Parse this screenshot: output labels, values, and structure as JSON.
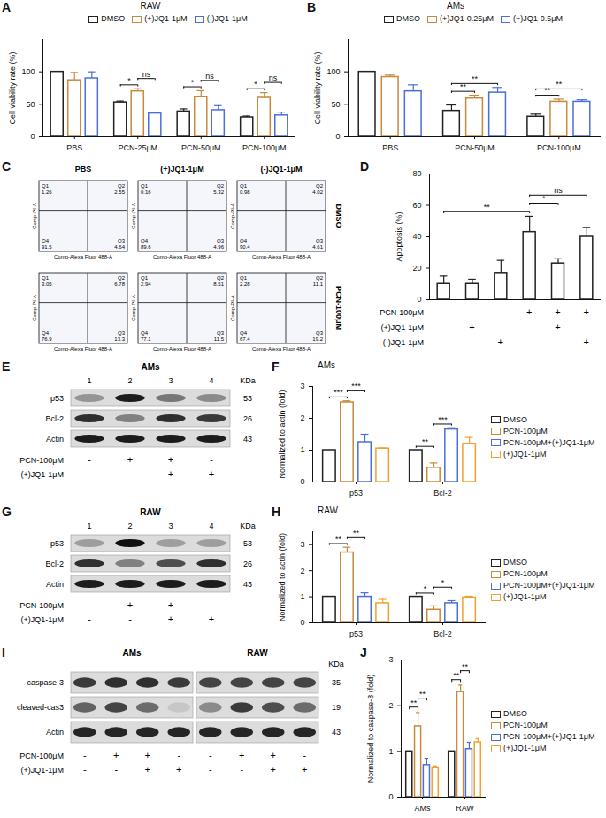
{
  "chart_data": [
    {
      "panel": "A",
      "type": "bar",
      "title": "RAW",
      "y_label": "Cell viability rate (%)",
      "categories": [
        "PBS",
        "PCN-25μM",
        "PCN-50μM",
        "PCN-100μM"
      ],
      "series": [
        {
          "name": "DMSO",
          "color": "#222222",
          "values": [
            100,
            53,
            39,
            30
          ],
          "errors": [
            0,
            2,
            4,
            2
          ]
        },
        {
          "name": "(+)JQ1-1μM",
          "color": "#c8893b",
          "values": [
            87,
            70,
            61,
            60
          ],
          "errors": [
            12,
            4,
            10,
            8
          ]
        },
        {
          "name": "(-)JQ1-1μM",
          "color": "#4a6fd6",
          "values": [
            90,
            36,
            41,
            33
          ],
          "errors": [
            10,
            2,
            7,
            5
          ]
        }
      ],
      "ylim": [
        0,
        150
      ],
      "yticks": [
        0,
        50,
        100
      ],
      "legend": "top",
      "annotations": [
        {
          "category": "PCN-25μM",
          "between": [
            "DMSO",
            "(+)JQ1-1μM"
          ],
          "text": "*"
        },
        {
          "category": "PCN-25μM",
          "between": [
            "(+)JQ1-1μM",
            "(-)JQ1-1μM"
          ],
          "text": "ns"
        },
        {
          "category": "PCN-50μM",
          "between": [
            "DMSO",
            "(+)JQ1-1μM"
          ],
          "text": "*"
        },
        {
          "category": "PCN-50μM",
          "between": [
            "(+)JQ1-1μM",
            "(-)JQ1-1μM"
          ],
          "text": "ns"
        },
        {
          "category": "PCN-100μM",
          "between": [
            "DMSO",
            "(+)JQ1-1μM"
          ],
          "text": "*"
        },
        {
          "category": "PCN-100μM",
          "between": [
            "(+)JQ1-1μM",
            "(-)JQ1-1μM"
          ],
          "text": "ns"
        }
      ]
    },
    {
      "panel": "B",
      "type": "bar",
      "title": "AMs",
      "y_label": "Cell viability rate (%)",
      "categories": [
        "PBS",
        "PCN-50μM",
        "PCN-100μM"
      ],
      "series": [
        {
          "name": "DMSO",
          "color": "#222222",
          "values": [
            100,
            40,
            31
          ],
          "errors": [
            0,
            9,
            4
          ]
        },
        {
          "name": "(+)JQ1-0.25μM",
          "color": "#c8893b",
          "values": [
            92,
            59,
            54
          ],
          "errors": [
            3,
            5,
            4
          ]
        },
        {
          "name": "(+)JQ1-0.5μM",
          "color": "#4a6fd6",
          "values": [
            70,
            68,
            54
          ],
          "errors": [
            10,
            8,
            3
          ]
        }
      ],
      "ylim": [
        0,
        150
      ],
      "yticks": [
        0,
        50,
        100
      ],
      "legend": "top",
      "annotations": [
        {
          "category": "PCN-50μM",
          "between": [
            "DMSO",
            "(+)JQ1-0.25μM"
          ],
          "text": "**"
        },
        {
          "category": "PCN-50μM",
          "between": [
            "DMSO",
            "(+)JQ1-0.5μM"
          ],
          "text": "**"
        },
        {
          "category": "PCN-100μM",
          "between": [
            "DMSO",
            "(+)JQ1-0.25μM"
          ],
          "text": "**"
        },
        {
          "category": "PCN-100μM",
          "between": [
            "DMSO",
            "(+)JQ1-0.5μM"
          ],
          "text": "**"
        }
      ]
    },
    {
      "panel": "C",
      "type": "flow_cytometry",
      "columns": [
        "PBS",
        "(+)JQ1-1μM",
        "(-)JQ1-1μM"
      ],
      "rows": [
        "DMSO",
        "PCN-100μM"
      ],
      "x_label": "Comp-Alexa Fluor 488-A",
      "y_label": "Comp-PI-A",
      "quadrants": [
        "Q1",
        "Q2",
        "Q3",
        "Q4"
      ],
      "values": [
        [
          [
            1.26,
            2.55,
            4.64,
            91.5
          ],
          [
            0.16,
            5.32,
            4.96,
            89.6
          ],
          [
            0.98,
            4.02,
            4.61,
            90.4
          ]
        ],
        [
          [
            3.05,
            6.78,
            13.3,
            76.9
          ],
          [
            2.94,
            8.51,
            11.5,
            77.1
          ],
          [
            2.28,
            11.1,
            19.2,
            67.4
          ]
        ]
      ]
    },
    {
      "panel": "D",
      "type": "bar",
      "y_label": "Apoptosis (%)",
      "categories": [
        null,
        null,
        null,
        null,
        null,
        null
      ],
      "values": [
        10,
        10,
        17,
        43,
        23,
        40
      ],
      "errors": [
        5,
        3,
        8,
        10,
        3,
        6
      ],
      "color": "#222222",
      "ylim": [
        0,
        80
      ],
      "yticks": [
        0,
        20,
        40,
        60,
        80
      ],
      "tick_labels": "y",
      "treatments": [
        {
          "label": "PCN-100μM",
          "signs": [
            "-",
            "-",
            "-",
            "+",
            "+",
            "+"
          ]
        },
        {
          "label": "(+)JQ1-1μM",
          "signs": [
            "-",
            "+",
            "-",
            "-",
            "+",
            "-"
          ]
        },
        {
          "label": "(-)JQ1-1μM",
          "signs": [
            "-",
            "-",
            "+",
            "-",
            "-",
            "+"
          ]
        }
      ],
      "annotations": [
        {
          "between": [
            0,
            3
          ],
          "text": "**"
        },
        {
          "between": [
            3,
            4
          ],
          "text": "*"
        },
        {
          "between": [
            3,
            5
          ],
          "text": "ns"
        }
      ]
    },
    {
      "panel": "E",
      "type": "western_blot",
      "title": "AMs",
      "kda_label": "KDa",
      "lanes": [
        "1",
        "2",
        "3",
        "4"
      ],
      "bands": [
        {
          "label": "p53",
          "kda": 53,
          "intensity": [
            0.35,
            0.95,
            0.5,
            0.4
          ]
        },
        {
          "label": "Bcl-2",
          "kda": 26,
          "intensity": [
            0.85,
            0.45,
            0.85,
            0.8
          ]
        },
        {
          "label": "Actin",
          "kda": 43,
          "intensity": [
            0.95,
            0.95,
            0.95,
            0.95
          ]
        }
      ],
      "treatments": [
        {
          "label": "PCN-100μM",
          "signs": [
            "-",
            "+",
            "+",
            "-"
          ]
        },
        {
          "label": "(+)JQ1-1μM",
          "signs": [
            "-",
            "-",
            "+",
            "+"
          ]
        }
      ]
    },
    {
      "panel": "F",
      "type": "bar",
      "title": "AMs",
      "y_label": "Normalized to actin (fold)",
      "categories": [
        "p53",
        "Bcl-2"
      ],
      "series": [
        {
          "name": "DMSO",
          "color": "#222222",
          "values": [
            1,
            1
          ],
          "errors": [
            0,
            0
          ]
        },
        {
          "name": "PCN-100μM",
          "color": "#c8893b",
          "values": [
            2.5,
            0.45
          ],
          "errors": [
            0.05,
            0.15
          ]
        },
        {
          "name": "PCN-100μM+(+)JQ1-1μM",
          "color": "#4a6fd6",
          "values": [
            1.25,
            1.65
          ],
          "errors": [
            0.25,
            0.05
          ]
        },
        {
          "name": "(+)JQ1-1μM",
          "color": "#f0a030",
          "values": [
            1.05,
            1.2
          ],
          "errors": [
            0.02,
            0.2
          ]
        }
      ],
      "ylim": [
        0,
        3
      ],
      "yticks": [
        0,
        1,
        2,
        3
      ],
      "legend": "right",
      "annotations": [
        {
          "category": "p53",
          "between": [
            "DMSO",
            "PCN-100μM"
          ],
          "text": "***"
        },
        {
          "category": "p53",
          "between": [
            "PCN-100μM",
            "PCN-100μM+(+)JQ1-1μM"
          ],
          "text": "***"
        },
        {
          "category": "Bcl-2",
          "between": [
            "DMSO",
            "PCN-100μM"
          ],
          "text": "**"
        },
        {
          "category": "Bcl-2",
          "between": [
            "PCN-100μM",
            "PCN-100μM+(+)JQ1-1μM"
          ],
          "text": "***"
        }
      ]
    },
    {
      "panel": "G",
      "type": "western_blot",
      "title": "RAW",
      "kda_label": "KDa",
      "lanes": [
        "1",
        "2",
        "3",
        "4"
      ],
      "bands": [
        {
          "label": "p53",
          "kda": 53,
          "intensity": [
            0.3,
            1,
            0.3,
            0.3
          ]
        },
        {
          "label": "Bcl-2",
          "kda": 26,
          "intensity": [
            0.85,
            0.45,
            0.7,
            0.85
          ]
        },
        {
          "label": "Actin",
          "kda": 43,
          "intensity": [
            0.95,
            0.95,
            0.95,
            0.95
          ]
        }
      ],
      "treatments": [
        {
          "label": "PCN-100μM",
          "signs": [
            "-",
            "+",
            "+",
            "-"
          ]
        },
        {
          "label": "(+)JQ1-1μM",
          "signs": [
            "-",
            "-",
            "+",
            "+"
          ]
        }
      ]
    },
    {
      "panel": "H",
      "type": "bar",
      "title": "RAW",
      "y_label": "Normalized to actin (fold)",
      "categories": [
        "p53",
        "Bcl-2"
      ],
      "series": [
        {
          "name": "DMSO",
          "color": "#222222",
          "values": [
            1,
            1
          ],
          "errors": [
            0,
            0
          ]
        },
        {
          "name": "PCN-100μM",
          "color": "#c8893b",
          "values": [
            2.7,
            0.5
          ],
          "errors": [
            0.2,
            0.15
          ]
        },
        {
          "name": "PCN-100μM+(+)JQ1-1μM",
          "color": "#4a6fd6",
          "values": [
            1,
            0.75
          ],
          "errors": [
            0.15,
            0.1
          ]
        },
        {
          "name": "(+)JQ1-1μM",
          "color": "#f0a030",
          "values": [
            0.75,
            0.97
          ],
          "errors": [
            0.15,
            0.05
          ]
        }
      ],
      "ylim": [
        0,
        3.5
      ],
      "yticks": [
        0,
        1,
        2,
        3
      ],
      "legend": "right",
      "annotations": [
        {
          "category": "p53",
          "between": [
            "DMSO",
            "PCN-100μM"
          ],
          "text": "**"
        },
        {
          "category": "p53",
          "between": [
            "PCN-100μM",
            "PCN-100μM+(+)JQ1-1μM"
          ],
          "text": "**"
        },
        {
          "category": "Bcl-2",
          "between": [
            "DMSO",
            "PCN-100μM"
          ],
          "text": "*"
        },
        {
          "category": "Bcl-2",
          "between": [
            "PCN-100μM",
            "PCN-100μM+(+)JQ1-1μM"
          ],
          "text": "*"
        }
      ]
    },
    {
      "panel": "I",
      "type": "western_blot",
      "groups": [
        "AMs",
        "RAW"
      ],
      "kda_label": "KDa",
      "bands": [
        {
          "label": "caspase-3",
          "kda": 35,
          "intensity": [
            0.8,
            0.85,
            0.85,
            0.8,
            0.75,
            0.75,
            0.75,
            0.75
          ]
        },
        {
          "label": "cleaved-cas3",
          "kda": 19,
          "intensity": [
            0.6,
            0.75,
            0.55,
            0.1,
            0.4,
            0.8,
            0.7,
            0.55
          ]
        },
        {
          "label": "Actin",
          "kda": 43,
          "intensity": [
            0.9,
            0.9,
            0.9,
            0.9,
            0.9,
            0.9,
            0.9,
            0.9
          ]
        }
      ],
      "treatments": [
        {
          "label": "PCN-100μM",
          "signs": [
            "-",
            "+",
            "+",
            "-",
            "-",
            "+",
            "+",
            "-"
          ]
        },
        {
          "label": "(+)JQ1-1μM",
          "signs": [
            "-",
            "-",
            "+",
            "+",
            "-",
            "-",
            "+",
            "+"
          ]
        }
      ]
    },
    {
      "panel": "J",
      "type": "bar",
      "y_label": "Normalized to caspase-3 (fold)",
      "categories": [
        "AMs",
        "RAW"
      ],
      "series": [
        {
          "name": "DMSO",
          "color": "#222222",
          "values": [
            1,
            1
          ],
          "errors": [
            0,
            0
          ]
        },
        {
          "name": "PCN-100μM",
          "color": "#c8893b",
          "values": [
            1.55,
            2.3
          ],
          "errors": [
            0.3,
            0.15
          ]
        },
        {
          "name": "PCN-100μM+(+)JQ1-1μM",
          "color": "#4a6fd6",
          "values": [
            0.7,
            1.05
          ],
          "errors": [
            0.15,
            0.15
          ]
        },
        {
          "name": "(+)JQ1-1μM",
          "color": "#f0a030",
          "values": [
            0.65,
            1.2
          ],
          "errors": [
            0.03,
            0.08
          ]
        }
      ],
      "ylim": [
        0,
        3
      ],
      "yticks": [
        0,
        1,
        2,
        3
      ],
      "legend": "right",
      "annotations": [
        {
          "category": "AMs",
          "between": [
            "DMSO",
            "PCN-100μM"
          ],
          "text": "**"
        },
        {
          "category": "AMs",
          "between": [
            "PCN-100μM",
            "PCN-100μM+(+)JQ1-1μM"
          ],
          "text": "**"
        },
        {
          "category": "RAW",
          "between": [
            "DMSO",
            "PCN-100μM"
          ],
          "text": "**"
        },
        {
          "category": "RAW",
          "between": [
            "PCN-100μM",
            "PCN-100μM+(+)JQ1-1μM"
          ],
          "text": "**"
        }
      ]
    }
  ]
}
